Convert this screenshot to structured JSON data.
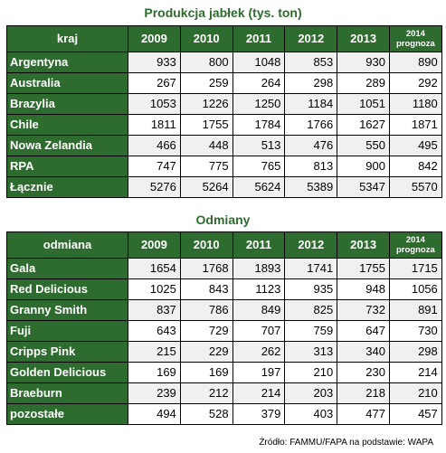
{
  "table1": {
    "title": "Produkcja jabłek (tys. ton)",
    "headers": [
      "kraj",
      "2009",
      "2010",
      "2011",
      "2012",
      "2013"
    ],
    "forecast_year": "2014",
    "forecast_label": "prognoza",
    "rows": [
      {
        "label": "Argentyna",
        "values": [
          "933",
          "800",
          "1048",
          "853",
          "930",
          "890"
        ]
      },
      {
        "label": "Australia",
        "values": [
          "267",
          "259",
          "264",
          "298",
          "289",
          "292"
        ]
      },
      {
        "label": "Brazylia",
        "values": [
          "1053",
          "1226",
          "1250",
          "1184",
          "1051",
          "1180"
        ]
      },
      {
        "label": "Chile",
        "values": [
          "1811",
          "1755",
          "1784",
          "1766",
          "1627",
          "1871"
        ]
      },
      {
        "label": "Nowa Zelandia",
        "values": [
          "466",
          "448",
          "513",
          "476",
          "550",
          "495"
        ]
      },
      {
        "label": "RPA",
        "values": [
          "747",
          "775",
          "765",
          "813",
          "900",
          "842"
        ]
      },
      {
        "label": "Łącznie",
        "values": [
          "5276",
          "5264",
          "5624",
          "5389",
          "5347",
          "5570"
        ]
      }
    ]
  },
  "table2": {
    "title": "Odmiany",
    "headers": [
      "odmiana",
      "2009",
      "2010",
      "2011",
      "2012",
      "2013"
    ],
    "forecast_year": "2014",
    "forecast_label": "prognoza",
    "rows": [
      {
        "label": "Gala",
        "values": [
          "1654",
          "1768",
          "1893",
          "1741",
          "1755",
          "1715"
        ]
      },
      {
        "label": "Red Delicious",
        "values": [
          "1025",
          "843",
          "1123",
          "935",
          "948",
          "1056"
        ]
      },
      {
        "label": "Granny Smith",
        "values": [
          "837",
          "786",
          "849",
          "825",
          "732",
          "891"
        ]
      },
      {
        "label": "Fuji",
        "values": [
          "643",
          "729",
          "707",
          "759",
          "647",
          "730"
        ]
      },
      {
        "label": "Cripps Pink",
        "values": [
          "215",
          "229",
          "262",
          "313",
          "340",
          "298"
        ]
      },
      {
        "label": "Golden Delicious",
        "values": [
          "169",
          "169",
          "197",
          "210",
          "230",
          "214"
        ]
      },
      {
        "label": "Braeburn",
        "values": [
          "239",
          "212",
          "214",
          "203",
          "218",
          "210"
        ]
      },
      {
        "label": "pozostałe",
        "values": [
          "494",
          "528",
          "379",
          "403",
          "477",
          "457"
        ]
      }
    ]
  },
  "source": "Źródło: FAMMU/FAPA na podstawie: WAPA",
  "colors": {
    "header_green": "#2e6b2e",
    "title_green": "#2e6b2e",
    "row_shade": "#f0f0f0"
  }
}
